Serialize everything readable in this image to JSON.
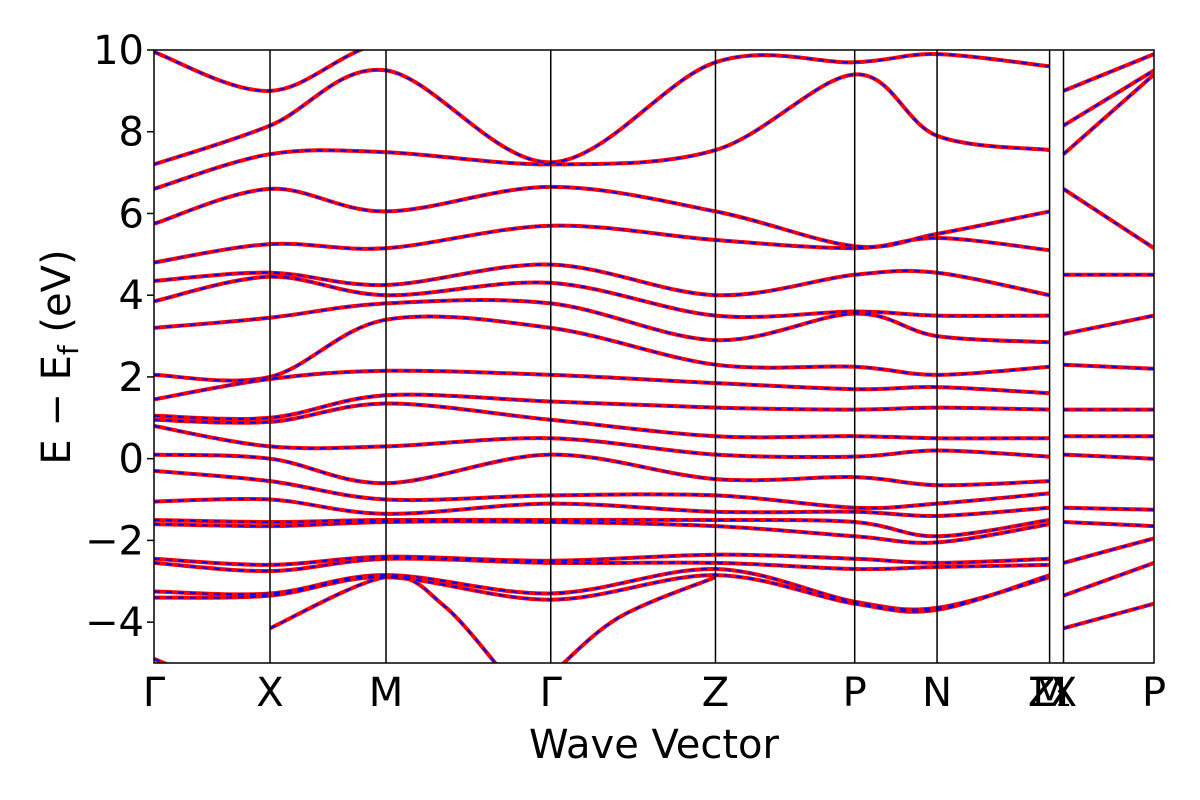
{
  "chart_data": {
    "type": "line",
    "title": "",
    "xlabel": "Wave Vector",
    "ylabel": "E − E_f (eV)",
    "ylabel_parts": {
      "main": "E − E",
      "sub": "f",
      "unit": " (eV)"
    },
    "ylim": [
      -5,
      10
    ],
    "yticks": [
      -4,
      -2,
      0,
      2,
      4,
      6,
      8,
      10
    ],
    "ytick_labels": [
      "−4",
      "−2",
      "0",
      "2",
      "4",
      "6",
      "8",
      "10"
    ],
    "xlim": [
      0,
      8.62
    ],
    "kpoints": [
      {
        "label": "Γ",
        "x": 0.0
      },
      {
        "label": "X",
        "x": 1.0
      },
      {
        "label": "M",
        "x": 2.0
      },
      {
        "label": "Γ",
        "x": 3.42
      },
      {
        "label": "Z",
        "x": 4.84
      },
      {
        "label": "P",
        "x": 6.04
      },
      {
        "label": "N",
        "x": 6.75
      },
      {
        "label": "M",
        "x": 7.72
      },
      {
        "label": "Z₁",
        "x": 7.72
      },
      {
        "label": "X",
        "x": 7.84
      },
      {
        "label": "P",
        "x": 8.62
      }
    ],
    "grid": false,
    "series": [
      {
        "color": "#ff0000",
        "style": "solid",
        "bands": [
          [
            [
              0,
              -3.4
            ],
            [
              1,
              -3.35
            ],
            [
              2,
              -2.9
            ],
            [
              3.42,
              -3.45
            ],
            [
              4.84,
              -2.85
            ],
            [
              6.04,
              -3.55
            ],
            [
              6.75,
              -3.7
            ],
            [
              7.72,
              -2.85
            ]
          ],
          [
            [
              0,
              -3.25
            ],
            [
              1,
              -3.3
            ],
            [
              2,
              -2.85
            ],
            [
              3.42,
              -3.3
            ],
            [
              4.84,
              -2.7
            ],
            [
              6.04,
              -3.5
            ],
            [
              6.75,
              -3.65
            ],
            [
              7.72,
              -2.9
            ]
          ],
          [
            [
              0,
              -2.55
            ],
            [
              1,
              -2.75
            ],
            [
              2,
              -2.45
            ],
            [
              3.42,
              -2.55
            ],
            [
              4.84,
              -2.55
            ],
            [
              6.04,
              -2.7
            ],
            [
              6.75,
              -2.65
            ],
            [
              7.72,
              -2.6
            ]
          ],
          [
            [
              0,
              -2.45
            ],
            [
              1,
              -2.6
            ],
            [
              2,
              -2.4
            ],
            [
              3.42,
              -2.5
            ],
            [
              4.84,
              -2.35
            ],
            [
              6.04,
              -2.45
            ],
            [
              6.75,
              -2.55
            ],
            [
              7.72,
              -2.45
            ]
          ],
          [
            [
              0,
              -1.6
            ],
            [
              1,
              -1.65
            ],
            [
              2,
              -1.55
            ],
            [
              3.42,
              -1.55
            ],
            [
              4.84,
              -1.65
            ],
            [
              6.04,
              -1.9
            ],
            [
              6.75,
              -2.05
            ],
            [
              7.72,
              -1.6
            ]
          ],
          [
            [
              0,
              -1.5
            ],
            [
              1,
              -1.55
            ],
            [
              2,
              -1.5
            ],
            [
              3.42,
              -1.5
            ],
            [
              4.84,
              -1.5
            ],
            [
              6.04,
              -1.55
            ],
            [
              6.75,
              -1.9
            ],
            [
              7.72,
              -1.5
            ]
          ],
          [
            [
              0,
              -1.05
            ],
            [
              1,
              -1.0
            ],
            [
              2,
              -1.35
            ],
            [
              3.42,
              -1.1
            ],
            [
              4.84,
              -1.3
            ],
            [
              6.04,
              -1.3
            ],
            [
              6.75,
              -1.4
            ],
            [
              7.72,
              -1.2
            ]
          ],
          [
            [
              0,
              -0.3
            ],
            [
              1,
              -0.55
            ],
            [
              2,
              -1.0
            ],
            [
              3.42,
              -0.9
            ],
            [
              4.84,
              -0.9
            ],
            [
              6.04,
              -1.2
            ],
            [
              6.75,
              -1.1
            ],
            [
              7.72,
              -0.85
            ]
          ],
          [
            [
              0,
              0.1
            ],
            [
              1,
              0.0
            ],
            [
              2,
              -0.6
            ],
            [
              3.42,
              0.1
            ],
            [
              4.84,
              -0.5
            ],
            [
              6.04,
              -0.45
            ],
            [
              6.75,
              -0.65
            ],
            [
              7.72,
              -0.55
            ]
          ],
          [
            [
              0,
              0.8
            ],
            [
              1,
              0.3
            ],
            [
              2,
              0.3
            ],
            [
              3.42,
              0.5
            ],
            [
              4.84,
              0.1
            ],
            [
              6.04,
              0.05
            ],
            [
              6.75,
              0.2
            ],
            [
              7.72,
              0.05
            ]
          ],
          [
            [
              0,
              0.95
            ],
            [
              1,
              0.9
            ],
            [
              2,
              1.35
            ],
            [
              3.42,
              0.95
            ],
            [
              4.84,
              0.55
            ],
            [
              6.04,
              0.55
            ],
            [
              6.75,
              0.5
            ],
            [
              7.72,
              0.5
            ]
          ],
          [
            [
              0,
              1.05
            ],
            [
              1,
              1.0
            ],
            [
              2,
              1.55
            ],
            [
              3.42,
              1.4
            ],
            [
              4.84,
              1.25
            ],
            [
              6.04,
              1.2
            ],
            [
              6.75,
              1.25
            ],
            [
              7.72,
              1.2
            ]
          ],
          [
            [
              0,
              1.45
            ],
            [
              1,
              1.95
            ],
            [
              2,
              2.15
            ],
            [
              3.42,
              2.05
            ],
            [
              4.84,
              1.85
            ],
            [
              6.04,
              1.7
            ],
            [
              6.75,
              1.75
            ],
            [
              7.72,
              1.6
            ]
          ],
          [
            [
              0,
              2.05
            ],
            [
              1,
              2.0
            ],
            [
              2,
              3.4
            ],
            [
              3.42,
              3.2
            ],
            [
              4.84,
              2.3
            ],
            [
              6.04,
              2.25
            ],
            [
              6.75,
              2.05
            ],
            [
              7.72,
              2.25
            ]
          ],
          [
            [
              0,
              3.2
            ],
            [
              1,
              3.45
            ],
            [
              2,
              3.8
            ],
            [
              3.42,
              3.8
            ],
            [
              4.84,
              2.9
            ],
            [
              6.04,
              3.55
            ],
            [
              6.75,
              3.0
            ],
            [
              7.72,
              2.85
            ]
          ],
          [
            [
              0,
              3.85
            ],
            [
              1,
              4.45
            ],
            [
              2,
              4.0
            ],
            [
              3.42,
              4.3
            ],
            [
              4.84,
              3.5
            ],
            [
              6.04,
              3.6
            ],
            [
              6.75,
              3.5
            ],
            [
              7.72,
              3.5
            ]
          ],
          [
            [
              0,
              4.35
            ],
            [
              1,
              4.55
            ],
            [
              2,
              4.25
            ],
            [
              3.42,
              4.75
            ],
            [
              4.84,
              4.0
            ],
            [
              6.04,
              4.5
            ],
            [
              6.75,
              4.55
            ],
            [
              7.72,
              4.0
            ]
          ],
          [
            [
              0,
              4.8
            ],
            [
              1,
              5.25
            ],
            [
              2,
              5.15
            ],
            [
              3.42,
              5.7
            ],
            [
              4.84,
              5.35
            ],
            [
              6.04,
              5.15
            ],
            [
              6.75,
              5.4
            ],
            [
              7.72,
              5.1
            ]
          ],
          [
            [
              0,
              5.75
            ],
            [
              1,
              6.6
            ],
            [
              2,
              6.05
            ],
            [
              3.42,
              6.65
            ],
            [
              4.84,
              6.05
            ],
            [
              6.04,
              5.2
            ],
            [
              6.75,
              5.5
            ],
            [
              7.72,
              6.05
            ]
          ],
          [
            [
              0,
              6.6
            ],
            [
              1,
              7.45
            ],
            [
              2,
              7.5
            ],
            [
              3.42,
              7.2
            ],
            [
              4.84,
              7.55
            ],
            [
              6.04,
              9.4
            ],
            [
              6.75,
              7.9
            ],
            [
              7.72,
              7.55
            ]
          ],
          [
            [
              0,
              7.2
            ],
            [
              1,
              8.15
            ],
            [
              2,
              9.5
            ],
            [
              3.42,
              7.25
            ],
            [
              4.84,
              9.7
            ],
            [
              6.04,
              9.7
            ],
            [
              6.75,
              9.9
            ],
            [
              7.72,
              9.6
            ]
          ],
          [
            [
              0,
              9.95
            ],
            [
              1,
              9.0
            ],
            [
              2,
              10.2
            ],
            [
              3.42,
              10.3
            ],
            [
              4.84,
              10.4
            ],
            [
              6.04,
              10.3
            ],
            [
              6.75,
              10.3
            ],
            [
              7.72,
              10.2
            ]
          ],
          [
            [
              7.84,
              -4.15
            ],
            [
              8.62,
              -3.55
            ]
          ],
          [
            [
              7.84,
              -3.35
            ],
            [
              8.62,
              -2.55
            ]
          ],
          [
            [
              7.84,
              -2.55
            ],
            [
              8.62,
              -1.95
            ]
          ],
          [
            [
              7.84,
              -1.55
            ],
            [
              8.62,
              -1.65
            ]
          ],
          [
            [
              7.84,
              -1.2
            ],
            [
              8.62,
              -1.25
            ]
          ],
          [
            [
              7.84,
              0.1
            ],
            [
              8.62,
              0.0
            ]
          ],
          [
            [
              7.84,
              0.55
            ],
            [
              8.62,
              0.55
            ]
          ],
          [
            [
              7.84,
              1.2
            ],
            [
              8.62,
              1.2
            ]
          ],
          [
            [
              7.84,
              2.3
            ],
            [
              8.62,
              2.2
            ]
          ],
          [
            [
              7.84,
              3.05
            ],
            [
              8.62,
              3.5
            ]
          ],
          [
            [
              7.84,
              4.5
            ],
            [
              8.62,
              4.5
            ]
          ],
          [
            [
              7.84,
              6.6
            ],
            [
              8.62,
              5.15
            ]
          ],
          [
            [
              7.84,
              7.45
            ],
            [
              8.62,
              9.4
            ]
          ],
          [
            [
              7.84,
              8.15
            ],
            [
              8.62,
              9.5
            ]
          ],
          [
            [
              7.84,
              9.0
            ],
            [
              8.62,
              9.9
            ]
          ],
          [
            [
              0,
              -4.9
            ],
            [
              0.6,
              -5.6
            ]
          ],
          [
            [
              1,
              -4.15
            ],
            [
              2,
              -2.9
            ],
            [
              2.5,
              -3.6
            ],
            [
              3.0,
              -5.2
            ]
          ],
          [
            [
              3.42,
              -5.3
            ],
            [
              4.0,
              -3.9
            ],
            [
              4.84,
              -2.9
            ]
          ]
        ]
      },
      {
        "color": "#0000ff",
        "style": "dashed",
        "bands": "same"
      }
    ]
  }
}
